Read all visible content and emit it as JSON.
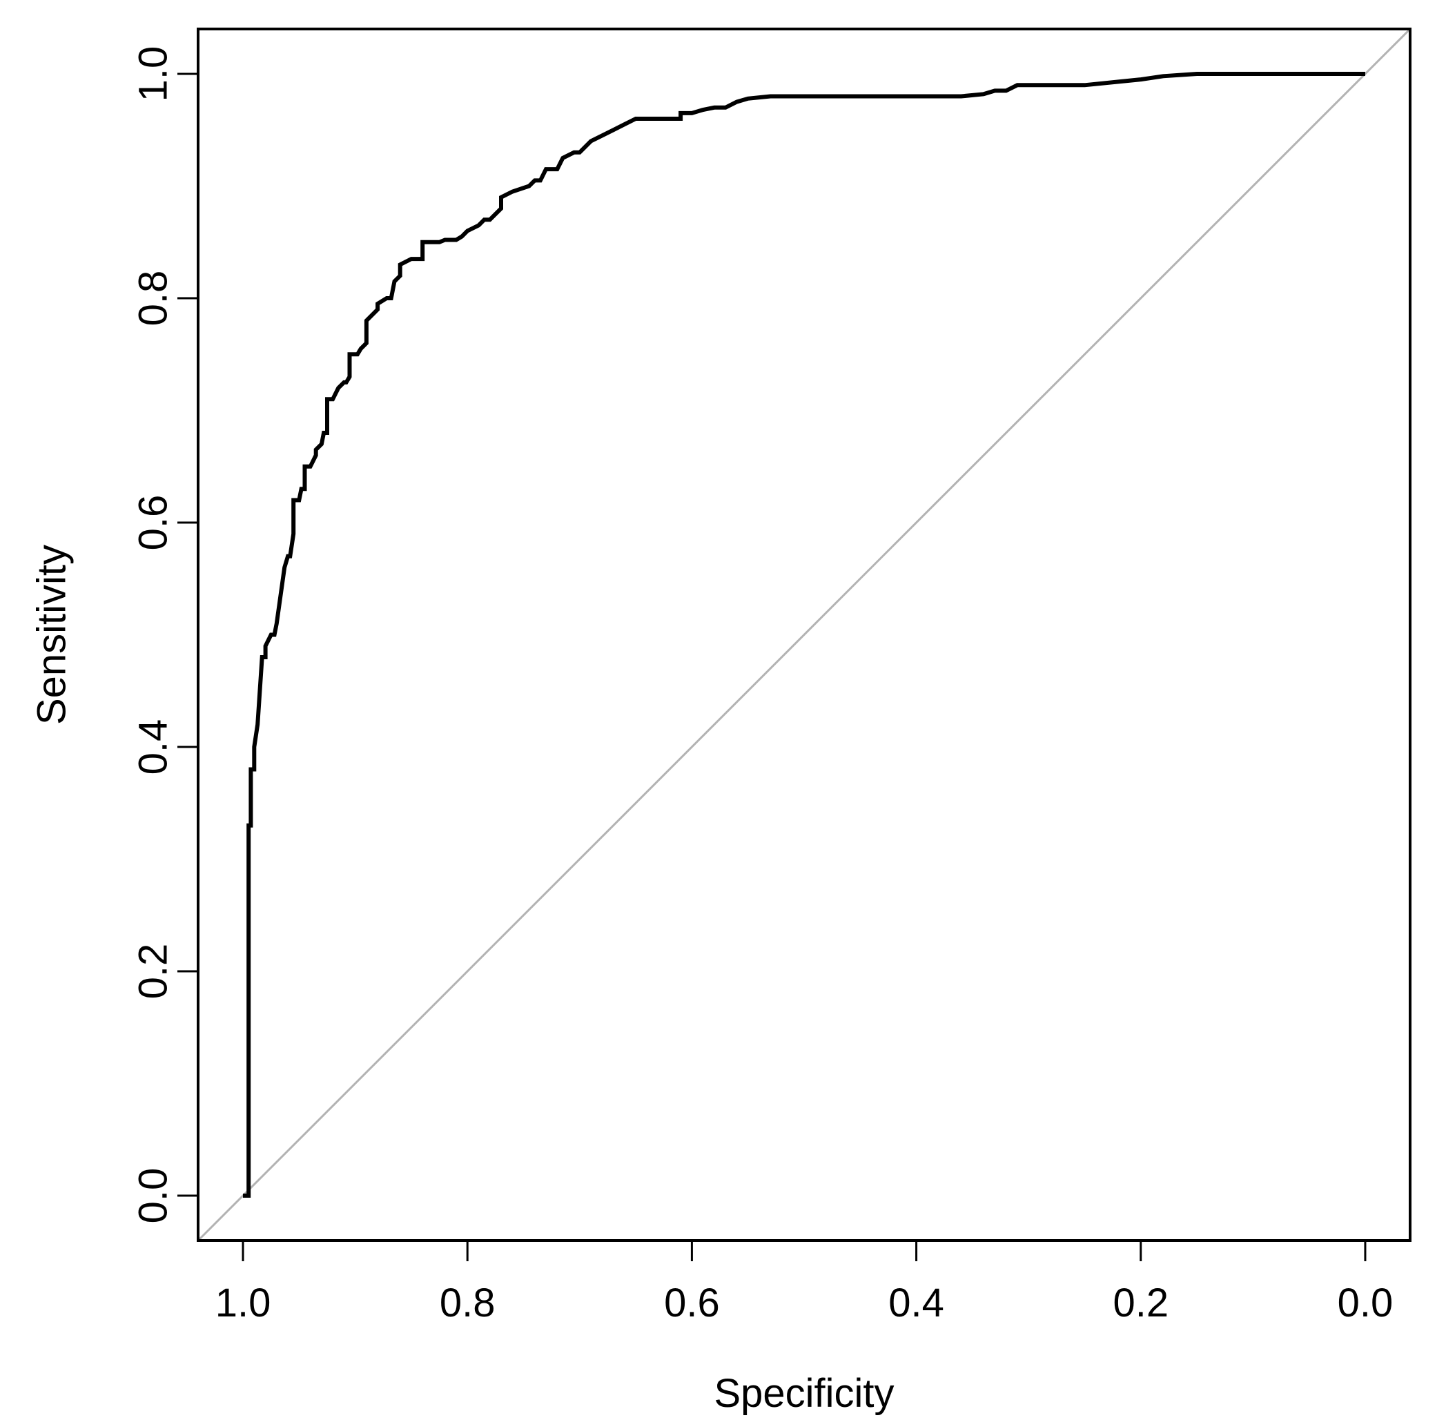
{
  "chart_data": {
    "type": "line",
    "title": "",
    "xlabel": "Specificity",
    "ylabel": "Sensitivity",
    "x_reversed": true,
    "xlim": [
      1.04,
      -0.04
    ],
    "ylim": [
      -0.04,
      1.04
    ],
    "x_ticks": [
      1.0,
      0.8,
      0.6,
      0.4,
      0.2,
      0.0
    ],
    "x_tick_labels": [
      "1.0",
      "0.8",
      "0.6",
      "0.4",
      "0.2",
      "0.0"
    ],
    "y_ticks": [
      0.0,
      0.2,
      0.4,
      0.6,
      0.8,
      1.0
    ],
    "y_tick_labels": [
      "0.0",
      "0.2",
      "0.4",
      "0.6",
      "0.8",
      "1.0"
    ],
    "grid": false,
    "legend": "none",
    "reference_line": {
      "from": [
        1.0,
        0.0
      ],
      "to": [
        0.0,
        1.0
      ],
      "color": "#b3b3b3"
    },
    "series": [
      {
        "color": "#000000",
        "x": [
          1.0,
          0.995,
          0.995,
          0.993,
          0.993,
          0.99,
          0.99,
          0.987,
          0.987,
          0.983,
          0.98,
          0.98,
          0.975,
          0.972,
          0.97,
          0.97,
          0.963,
          0.963,
          0.96,
          0.958,
          0.955,
          0.955,
          0.95,
          0.948,
          0.945,
          0.945,
          0.94,
          0.935,
          0.935,
          0.93,
          0.928,
          0.925,
          0.925,
          0.92,
          0.915,
          0.915,
          0.91,
          0.908,
          0.905,
          0.905,
          0.898,
          0.895,
          0.89,
          0.89,
          0.88,
          0.88,
          0.872,
          0.868,
          0.865,
          0.86,
          0.86,
          0.85,
          0.84,
          0.84,
          0.825,
          0.82,
          0.81,
          0.805,
          0.8,
          0.79,
          0.785,
          0.78,
          0.77,
          0.77,
          0.76,
          0.745,
          0.74,
          0.735,
          0.73,
          0.72,
          0.715,
          0.705,
          0.7,
          0.69,
          0.68,
          0.67,
          0.66,
          0.65,
          0.645,
          0.625,
          0.61,
          0.61,
          0.6,
          0.59,
          0.58,
          0.57,
          0.56,
          0.55,
          0.53,
          0.52,
          0.48,
          0.45,
          0.4,
          0.36,
          0.34,
          0.33,
          0.325,
          0.32,
          0.31,
          0.25,
          0.22,
          0.2,
          0.18,
          0.15,
          0.12,
          0.05,
          0.0
        ],
        "y": [
          0.0,
          0.0,
          0.33,
          0.33,
          0.38,
          0.38,
          0.4,
          0.42,
          0.42,
          0.48,
          0.48,
          0.49,
          0.5,
          0.5,
          0.51,
          0.51,
          0.56,
          0.56,
          0.57,
          0.57,
          0.59,
          0.62,
          0.62,
          0.63,
          0.63,
          0.65,
          0.65,
          0.66,
          0.665,
          0.67,
          0.68,
          0.68,
          0.71,
          0.71,
          0.72,
          0.72,
          0.725,
          0.725,
          0.73,
          0.75,
          0.75,
          0.755,
          0.76,
          0.78,
          0.79,
          0.795,
          0.8,
          0.8,
          0.815,
          0.82,
          0.83,
          0.835,
          0.835,
          0.85,
          0.85,
          0.852,
          0.852,
          0.855,
          0.86,
          0.865,
          0.87,
          0.87,
          0.88,
          0.89,
          0.895,
          0.9,
          0.905,
          0.905,
          0.915,
          0.915,
          0.925,
          0.93,
          0.93,
          0.94,
          0.945,
          0.95,
          0.955,
          0.96,
          0.96,
          0.96,
          0.96,
          0.965,
          0.965,
          0.968,
          0.97,
          0.97,
          0.975,
          0.978,
          0.98,
          0.98,
          0.98,
          0.98,
          0.98,
          0.98,
          0.982,
          0.985,
          0.985,
          0.985,
          0.99,
          0.99,
          0.993,
          0.995,
          0.998,
          1.0,
          1.0,
          1.0,
          1.0
        ]
      }
    ]
  }
}
